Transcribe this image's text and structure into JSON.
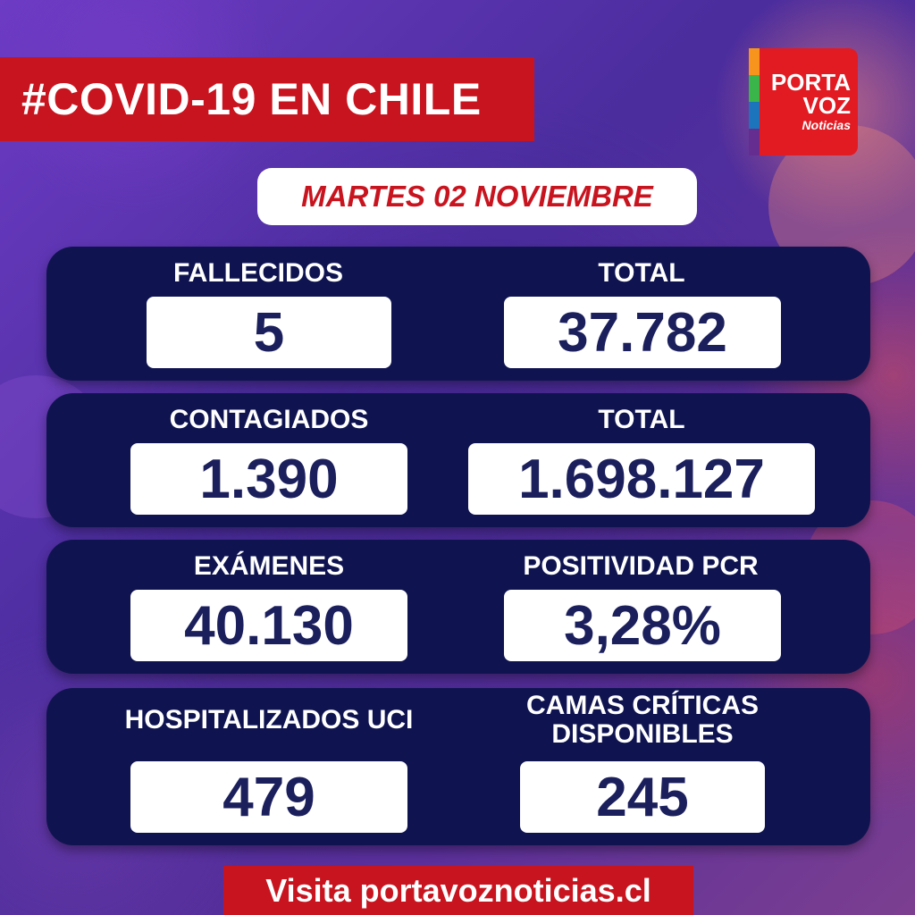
{
  "header": {
    "title": "#COVID-19 EN CHILE"
  },
  "logo": {
    "line1": "PORTA",
    "line2": "VOZ",
    "line3": "Noticias"
  },
  "date": "MARTES 02 NOVIEMBRE",
  "stats": {
    "fallecidos": {
      "label": "FALLECIDOS",
      "value": "5"
    },
    "fallecidos_total": {
      "label": "TOTAL",
      "value": "37.782"
    },
    "contagiados": {
      "label": "CONTAGIADOS",
      "value": "1.390"
    },
    "contagiados_total": {
      "label": "TOTAL",
      "value": "1.698.127"
    },
    "examenes": {
      "label": "EXÁMENES",
      "value": "40.130"
    },
    "positividad": {
      "label": "POSITIVIDAD PCR",
      "value": "3,28%"
    },
    "hospitalizados": {
      "label": "HOSPITALIZADOS UCI",
      "value": "479"
    },
    "camas": {
      "label_line1": "CAMAS CRÍTICAS",
      "label_line2": "DISPONIBLES",
      "value": "245"
    }
  },
  "footer": {
    "text": "Visita portavoznoticias.cl"
  },
  "colors": {
    "brand_red": "#c8141f",
    "panel_navy": "#0f1450",
    "value_text": "#1b1f5c"
  }
}
